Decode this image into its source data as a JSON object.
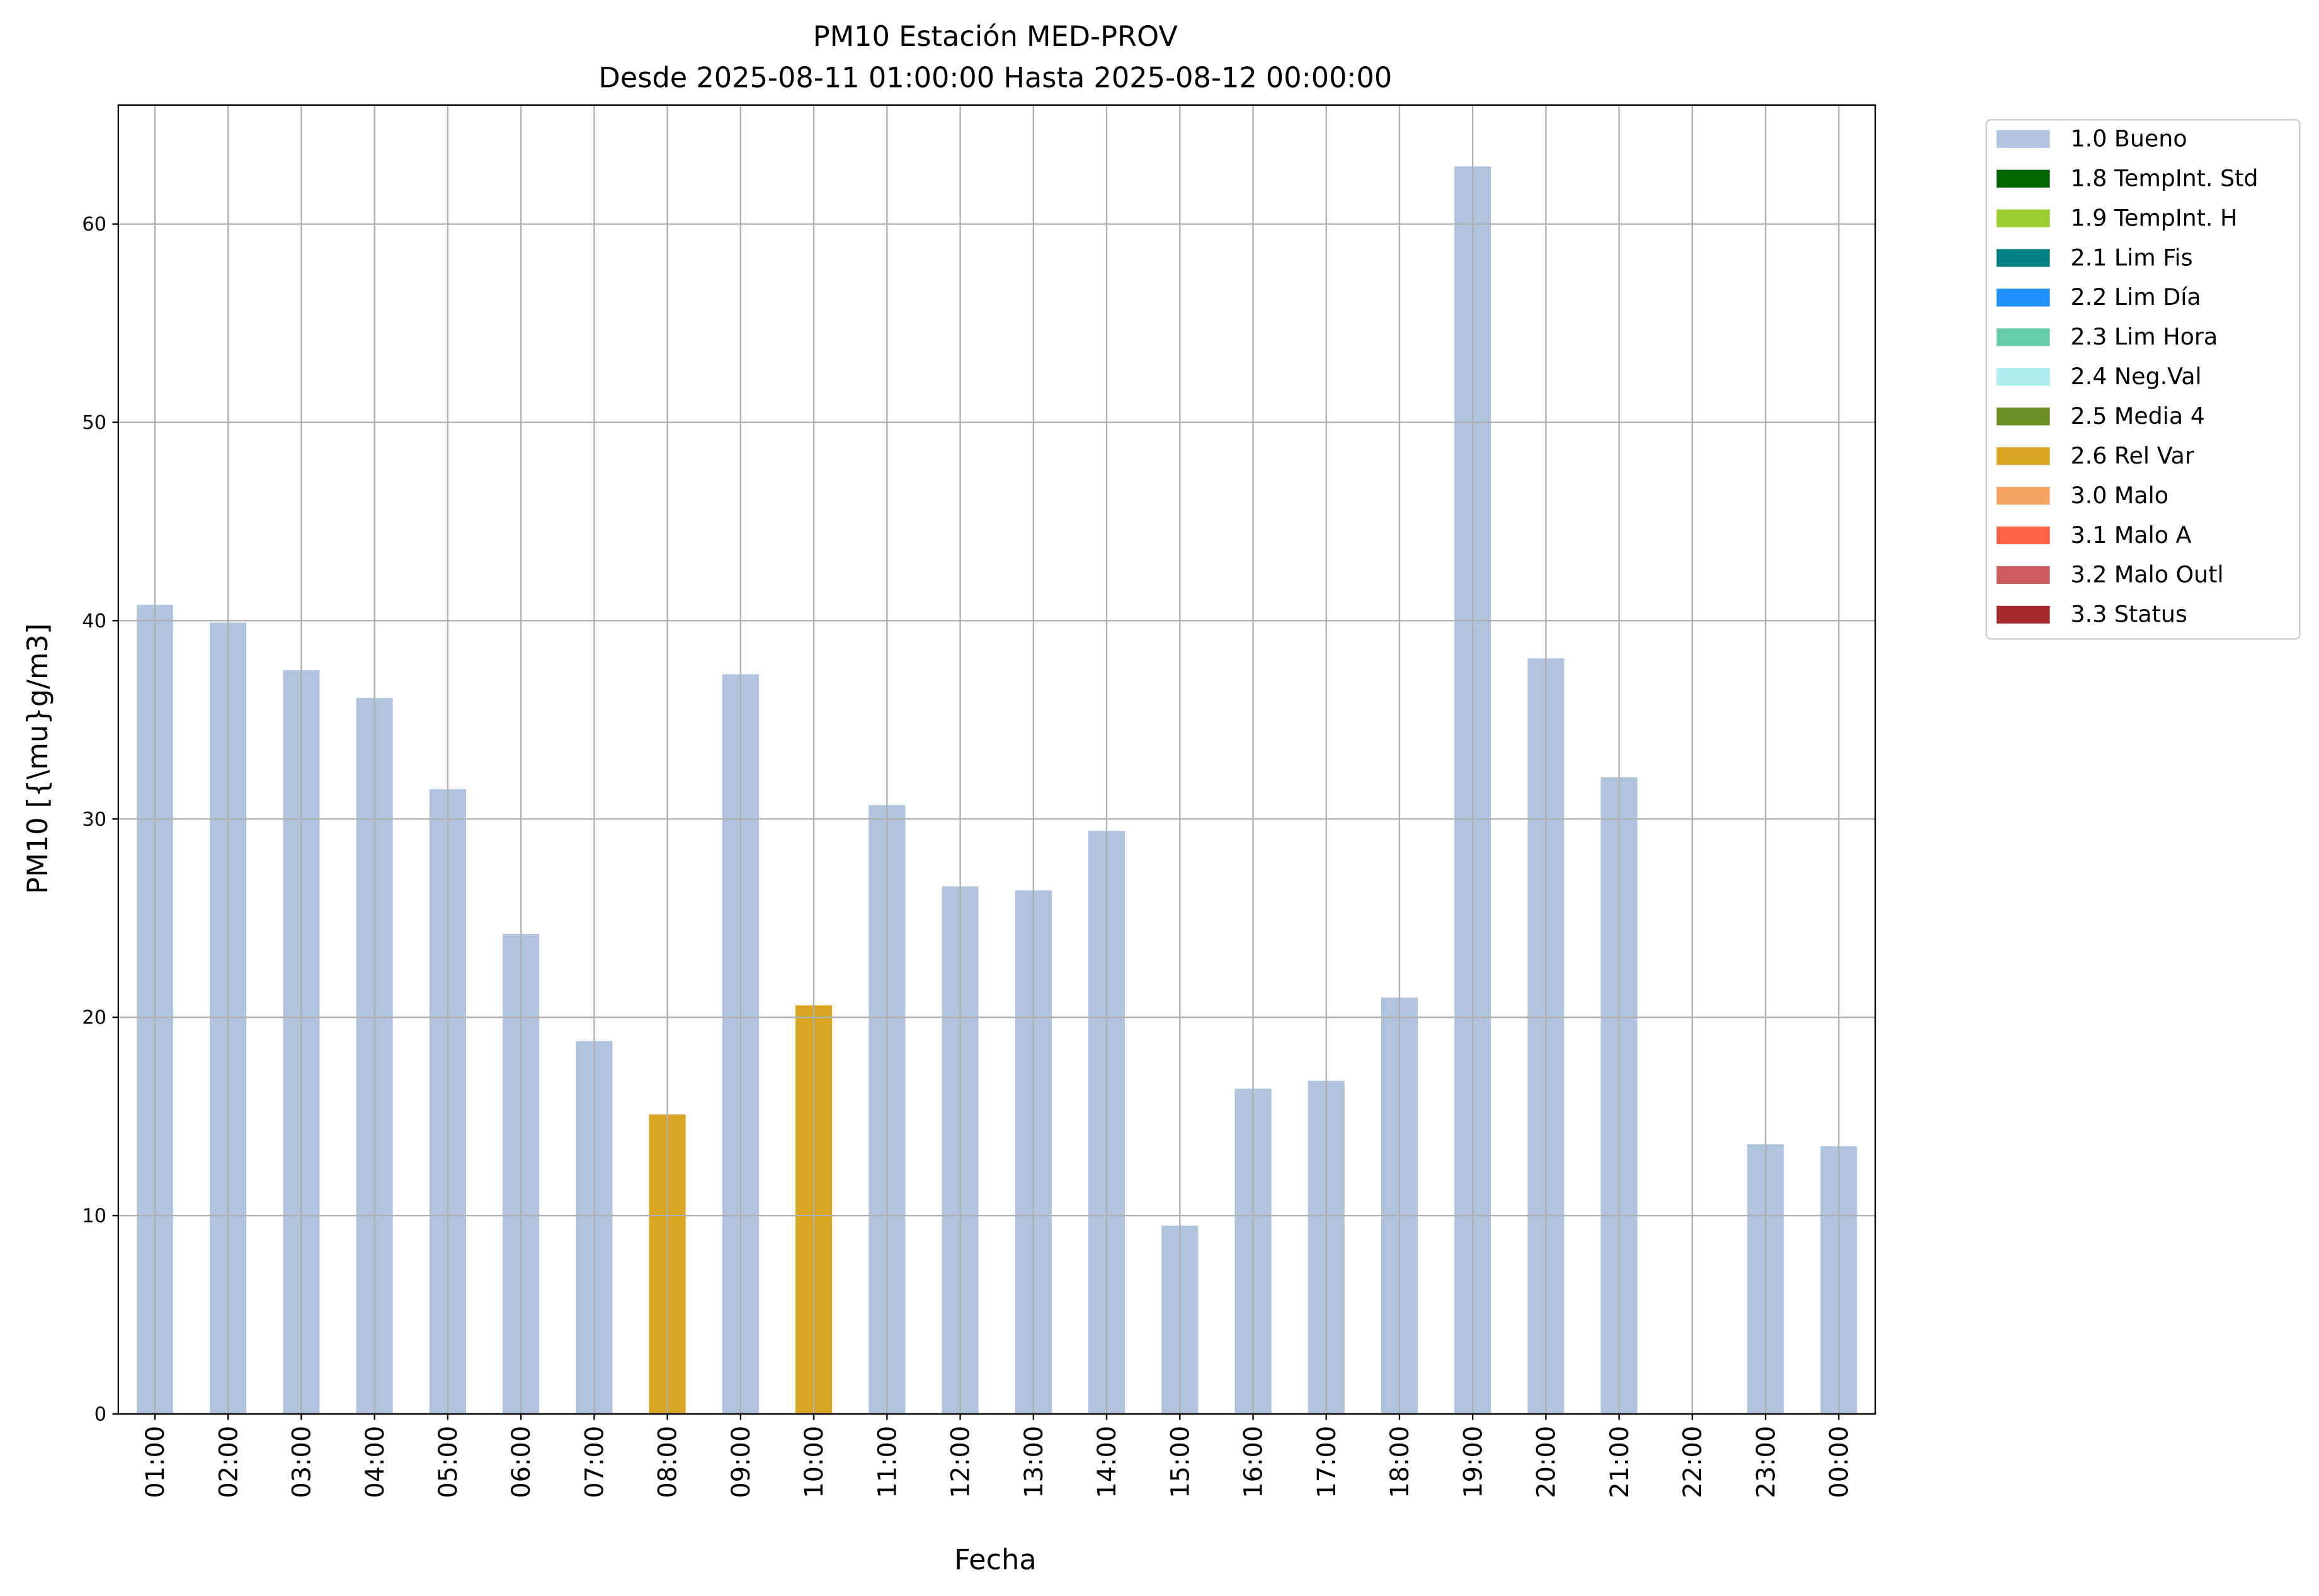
{
  "chart_data": {
    "type": "stacked_bar",
    "title": "PM10 Estación MED-PROV",
    "subtitle": "Desde 2025-08-11 01:00:00 Hasta 2025-08-12 00:00:00",
    "x_label": "Fecha",
    "y_label": "PM10 [{\\mu}g/m3]",
    "categories": [
      "01:00",
      "02:00",
      "03:00",
      "04:00",
      "05:00",
      "06:00",
      "07:00",
      "08:00",
      "09:00",
      "10:00",
      "11:00",
      "12:00",
      "13:00",
      "14:00",
      "15:00",
      "16:00",
      "17:00",
      "18:00",
      "19:00",
      "20:00",
      "21:00",
      "22:00",
      "23:00",
      "00:00"
    ],
    "series": [
      {
        "name": "1.0 Bueno",
        "color": "#b0c4de",
        "values": [
          40.8,
          39.9,
          37.5,
          36.1,
          31.5,
          24.2,
          18.8,
          null,
          37.3,
          null,
          30.7,
          26.6,
          26.4,
          29.4,
          9.5,
          16.4,
          16.8,
          21.0,
          62.9,
          38.1,
          32.1,
          null,
          13.6,
          13.5
        ]
      },
      {
        "name": "1.8 TempInt. Std",
        "color": "#006400",
        "values": [
          null,
          null,
          null,
          null,
          null,
          null,
          null,
          null,
          null,
          null,
          null,
          null,
          null,
          null,
          null,
          null,
          null,
          null,
          null,
          null,
          null,
          null,
          null,
          null
        ]
      },
      {
        "name": "1.9 TempInt. H",
        "color": "#9acd32",
        "values": [
          null,
          null,
          null,
          null,
          null,
          null,
          null,
          null,
          null,
          null,
          null,
          null,
          null,
          null,
          null,
          null,
          null,
          null,
          null,
          null,
          null,
          null,
          null,
          null
        ]
      },
      {
        "name": "2.1 Lim Fis",
        "color": "#008080",
        "values": [
          null,
          null,
          null,
          null,
          null,
          null,
          null,
          null,
          null,
          null,
          null,
          null,
          null,
          null,
          null,
          null,
          null,
          null,
          null,
          null,
          null,
          null,
          null,
          null
        ]
      },
      {
        "name": "2.2 Lim Día",
        "color": "#1e90ff",
        "values": [
          null,
          null,
          null,
          null,
          null,
          null,
          null,
          null,
          null,
          null,
          null,
          null,
          null,
          null,
          null,
          null,
          null,
          null,
          null,
          null,
          null,
          null,
          null,
          null
        ]
      },
      {
        "name": "2.3 Lim Hora",
        "color": "#66cdaa",
        "values": [
          null,
          null,
          null,
          null,
          null,
          null,
          null,
          null,
          null,
          null,
          null,
          null,
          null,
          null,
          null,
          null,
          null,
          null,
          null,
          null,
          null,
          null,
          null,
          null
        ]
      },
      {
        "name": "2.4 Neg.Val",
        "color": "#afeeee",
        "values": [
          null,
          null,
          null,
          null,
          null,
          null,
          null,
          null,
          null,
          null,
          null,
          null,
          null,
          null,
          null,
          null,
          null,
          null,
          null,
          null,
          null,
          null,
          null,
          null
        ]
      },
      {
        "name": "2.5 Media 4",
        "color": "#6b8e23",
        "values": [
          null,
          null,
          null,
          null,
          null,
          null,
          null,
          null,
          null,
          null,
          null,
          null,
          null,
          null,
          null,
          null,
          null,
          null,
          null,
          null,
          null,
          null,
          null,
          null
        ]
      },
      {
        "name": "2.6 Rel Var",
        "color": "#daa520",
        "values": [
          null,
          null,
          null,
          null,
          null,
          null,
          null,
          15.1,
          null,
          20.6,
          null,
          null,
          null,
          null,
          null,
          null,
          null,
          null,
          null,
          null,
          null,
          null,
          null,
          null
        ]
      },
      {
        "name": "3.0 Malo",
        "color": "#f4a460",
        "values": [
          null,
          null,
          null,
          null,
          null,
          null,
          null,
          null,
          null,
          null,
          null,
          null,
          null,
          null,
          null,
          null,
          null,
          null,
          null,
          null,
          null,
          null,
          null,
          null
        ]
      },
      {
        "name": "3.1 Malo A",
        "color": "#ff6347",
        "values": [
          null,
          null,
          null,
          null,
          null,
          null,
          null,
          null,
          null,
          null,
          null,
          null,
          null,
          null,
          null,
          null,
          null,
          null,
          null,
          null,
          null,
          null,
          null,
          null
        ]
      },
      {
        "name": "3.2 Malo Outl",
        "color": "#cd5c5c",
        "values": [
          null,
          null,
          null,
          null,
          null,
          null,
          null,
          null,
          null,
          null,
          null,
          null,
          null,
          null,
          null,
          null,
          null,
          null,
          null,
          null,
          null,
          null,
          null,
          null
        ]
      },
      {
        "name": "3.3 Status",
        "color": "#a52a2a",
        "values": [
          null,
          null,
          null,
          null,
          null,
          null,
          null,
          null,
          null,
          null,
          null,
          null,
          null,
          null,
          null,
          null,
          null,
          null,
          null,
          null,
          null,
          null,
          null,
          null
        ]
      }
    ],
    "ylim": [
      0,
      66
    ],
    "yticks": [
      0,
      10,
      20,
      30,
      40,
      50,
      60
    ],
    "grid": true,
    "legend": "outside-upper-right"
  }
}
